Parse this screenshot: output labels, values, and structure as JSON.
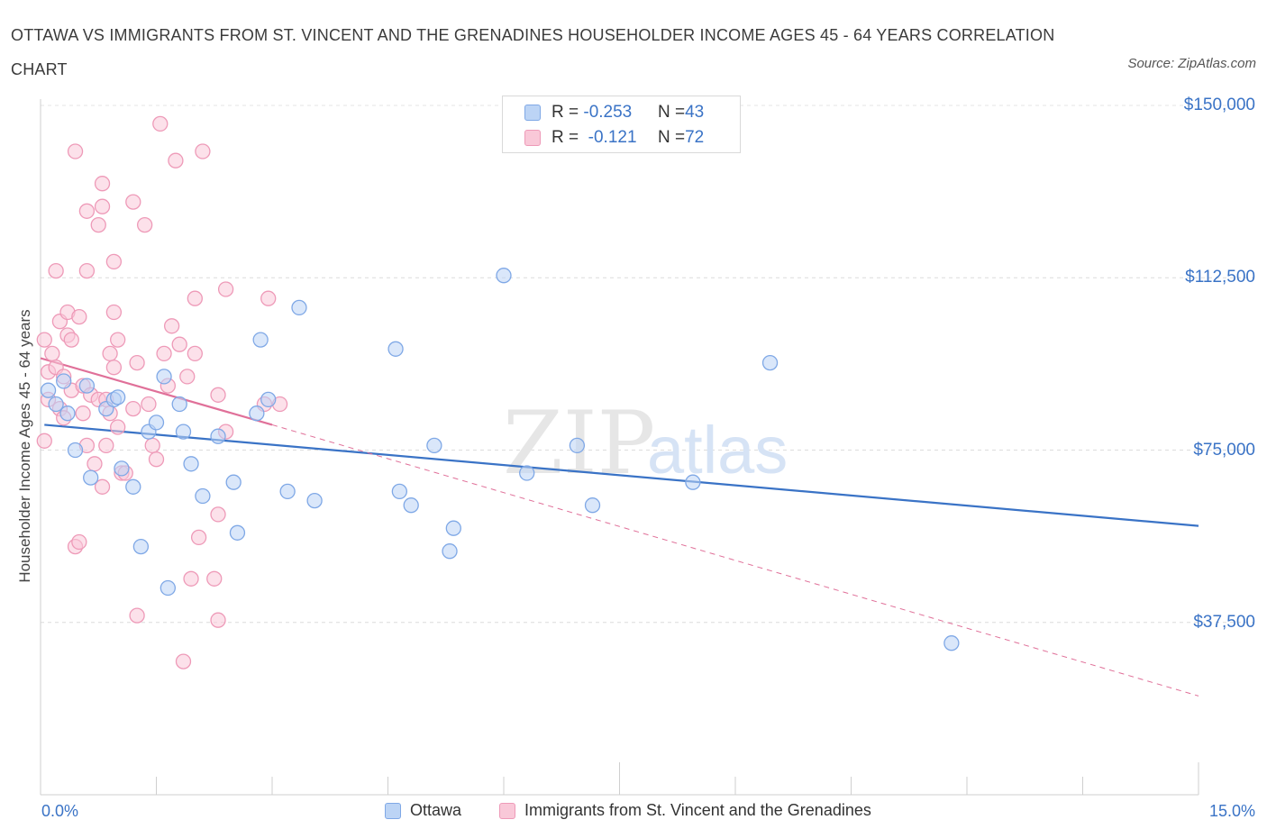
{
  "title": "OTTAWA VS IMMIGRANTS FROM ST. VINCENT AND THE GRENADINES HOUSEHOLDER INCOME AGES 45 - 64 YEARS CORRELATION CHART",
  "source": "Source: ZipAtlas.com",
  "watermark": {
    "zip": "ZIP",
    "atlas": "atlas"
  },
  "colors": {
    "blue": "#3a73c6",
    "blue_fill": "#bcd4f5",
    "blue_stroke": "#7fa8e6",
    "pink": "#e07099",
    "pink_fill": "#f9c8d8",
    "pink_stroke": "#ee9ab8"
  },
  "legend": {
    "rows": [
      {
        "r_label": "R = ",
        "r_value": "-0.253",
        "n_label": "N = ",
        "n_value": "43"
      },
      {
        "r_label": "R = ",
        "r_value": " -0.121",
        "n_label": "N = ",
        "n_value": "72"
      }
    ]
  },
  "chart_data": {
    "type": "scatter",
    "xlabel": "",
    "ylabel": "Householder Income Ages 45 - 64 years",
    "xlim": [
      0,
      15
    ],
    "ylim": [
      0,
      150000
    ],
    "x_tick_labels": [
      "0.0%",
      "15.0%"
    ],
    "y_ticks": [
      37500,
      75000,
      112500,
      150000
    ],
    "y_tick_labels": [
      "$37,500",
      "$75,000",
      "$112,500",
      "$150,000"
    ],
    "grid": true,
    "legend_position": "bottom",
    "series": [
      {
        "name": "Ottawa",
        "color": "#3a73c6",
        "trend": {
          "x0": 0.05,
          "y0": 80500,
          "x1": 15.0,
          "y1": 58500
        },
        "points": [
          [
            0.2,
            85000
          ],
          [
            0.3,
            90000
          ],
          [
            0.35,
            83000
          ],
          [
            0.45,
            75000
          ],
          [
            0.6,
            89000
          ],
          [
            0.65,
            69000
          ],
          [
            0.85,
            84000
          ],
          [
            0.95,
            86000
          ],
          [
            1.05,
            71000
          ],
          [
            1.2,
            67000
          ],
          [
            1.3,
            54000
          ],
          [
            1.4,
            79000
          ],
          [
            1.5,
            81000
          ],
          [
            1.6,
            91000
          ],
          [
            1.65,
            45000
          ],
          [
            1.8,
            85000
          ],
          [
            1.85,
            79000
          ],
          [
            1.95,
            72000
          ],
          [
            2.1,
            65000
          ],
          [
            2.3,
            78000
          ],
          [
            2.5,
            68000
          ],
          [
            2.55,
            57000
          ],
          [
            2.8,
            83000
          ],
          [
            2.85,
            99000
          ],
          [
            2.95,
            86000
          ],
          [
            3.2,
            66000
          ],
          [
            3.35,
            106000
          ],
          [
            3.55,
            64000
          ],
          [
            4.6,
            97000
          ],
          [
            4.65,
            66000
          ],
          [
            4.8,
            63000
          ],
          [
            5.1,
            76000
          ],
          [
            5.3,
            53000
          ],
          [
            5.35,
            58000
          ],
          [
            6.0,
            113000
          ],
          [
            6.3,
            70000
          ],
          [
            6.95,
            76000
          ],
          [
            7.15,
            63000
          ],
          [
            8.45,
            68000
          ],
          [
            9.45,
            94000
          ],
          [
            11.8,
            33000
          ],
          [
            0.1,
            88000
          ],
          [
            1.0,
            86500
          ]
        ]
      },
      {
        "name": "Immigrants from St. Vincent and the Grenadines",
        "color": "#e07099",
        "trend": {
          "x0": 0.0,
          "y0": 95000,
          "x1": 3.0,
          "y1": 80500
        },
        "trend_ext": {
          "x0": 3.0,
          "y0": 80500,
          "x1": 15.0,
          "y1": 21500
        },
        "points": [
          [
            0.05,
            99000
          ],
          [
            0.05,
            77000
          ],
          [
            0.1,
            86000
          ],
          [
            0.1,
            92000
          ],
          [
            0.15,
            96000
          ],
          [
            0.2,
            93000
          ],
          [
            0.2,
            114000
          ],
          [
            0.25,
            103000
          ],
          [
            0.25,
            84000
          ],
          [
            0.3,
            91000
          ],
          [
            0.3,
            82000
          ],
          [
            0.35,
            105000
          ],
          [
            0.35,
            100000
          ],
          [
            0.4,
            99000
          ],
          [
            0.4,
            88000
          ],
          [
            0.45,
            140000
          ],
          [
            0.45,
            54000
          ],
          [
            0.5,
            55000
          ],
          [
            0.5,
            104000
          ],
          [
            0.55,
            83000
          ],
          [
            0.55,
            89000
          ],
          [
            0.6,
            127000
          ],
          [
            0.6,
            114000
          ],
          [
            0.6,
            76000
          ],
          [
            0.65,
            87000
          ],
          [
            0.7,
            72000
          ],
          [
            0.75,
            124000
          ],
          [
            0.75,
            86000
          ],
          [
            0.8,
            133000
          ],
          [
            0.8,
            128000
          ],
          [
            0.8,
            67000
          ],
          [
            0.85,
            76000
          ],
          [
            0.85,
            86000
          ],
          [
            0.9,
            83000
          ],
          [
            0.95,
            116000
          ],
          [
            0.95,
            105000
          ],
          [
            1.0,
            99000
          ],
          [
            1.05,
            70000
          ],
          [
            1.1,
            70000
          ],
          [
            0.95,
            93000
          ],
          [
            0.9,
            96000
          ],
          [
            1.2,
            129000
          ],
          [
            1.25,
            39000
          ],
          [
            1.35,
            124000
          ],
          [
            1.4,
            85000
          ],
          [
            1.45,
            76000
          ],
          [
            1.5,
            73000
          ],
          [
            1.55,
            146000
          ],
          [
            1.6,
            96000
          ],
          [
            1.7,
            102000
          ],
          [
            1.75,
            138000
          ],
          [
            1.8,
            98000
          ],
          [
            1.85,
            29000
          ],
          [
            1.9,
            91000
          ],
          [
            1.95,
            47000
          ],
          [
            2.0,
            108000
          ],
          [
            2.0,
            96000
          ],
          [
            2.05,
            56000
          ],
          [
            2.1,
            140000
          ],
          [
            2.25,
            47000
          ],
          [
            2.3,
            38000
          ],
          [
            2.3,
            61000
          ],
          [
            2.3,
            87000
          ],
          [
            2.4,
            110000
          ],
          [
            2.4,
            79000
          ],
          [
            2.9,
            85000
          ],
          [
            2.95,
            108000
          ],
          [
            3.1,
            85000
          ],
          [
            1.2,
            84000
          ],
          [
            1.65,
            89000
          ],
          [
            1.25,
            94000
          ],
          [
            1.0,
            80000
          ]
        ]
      }
    ]
  }
}
